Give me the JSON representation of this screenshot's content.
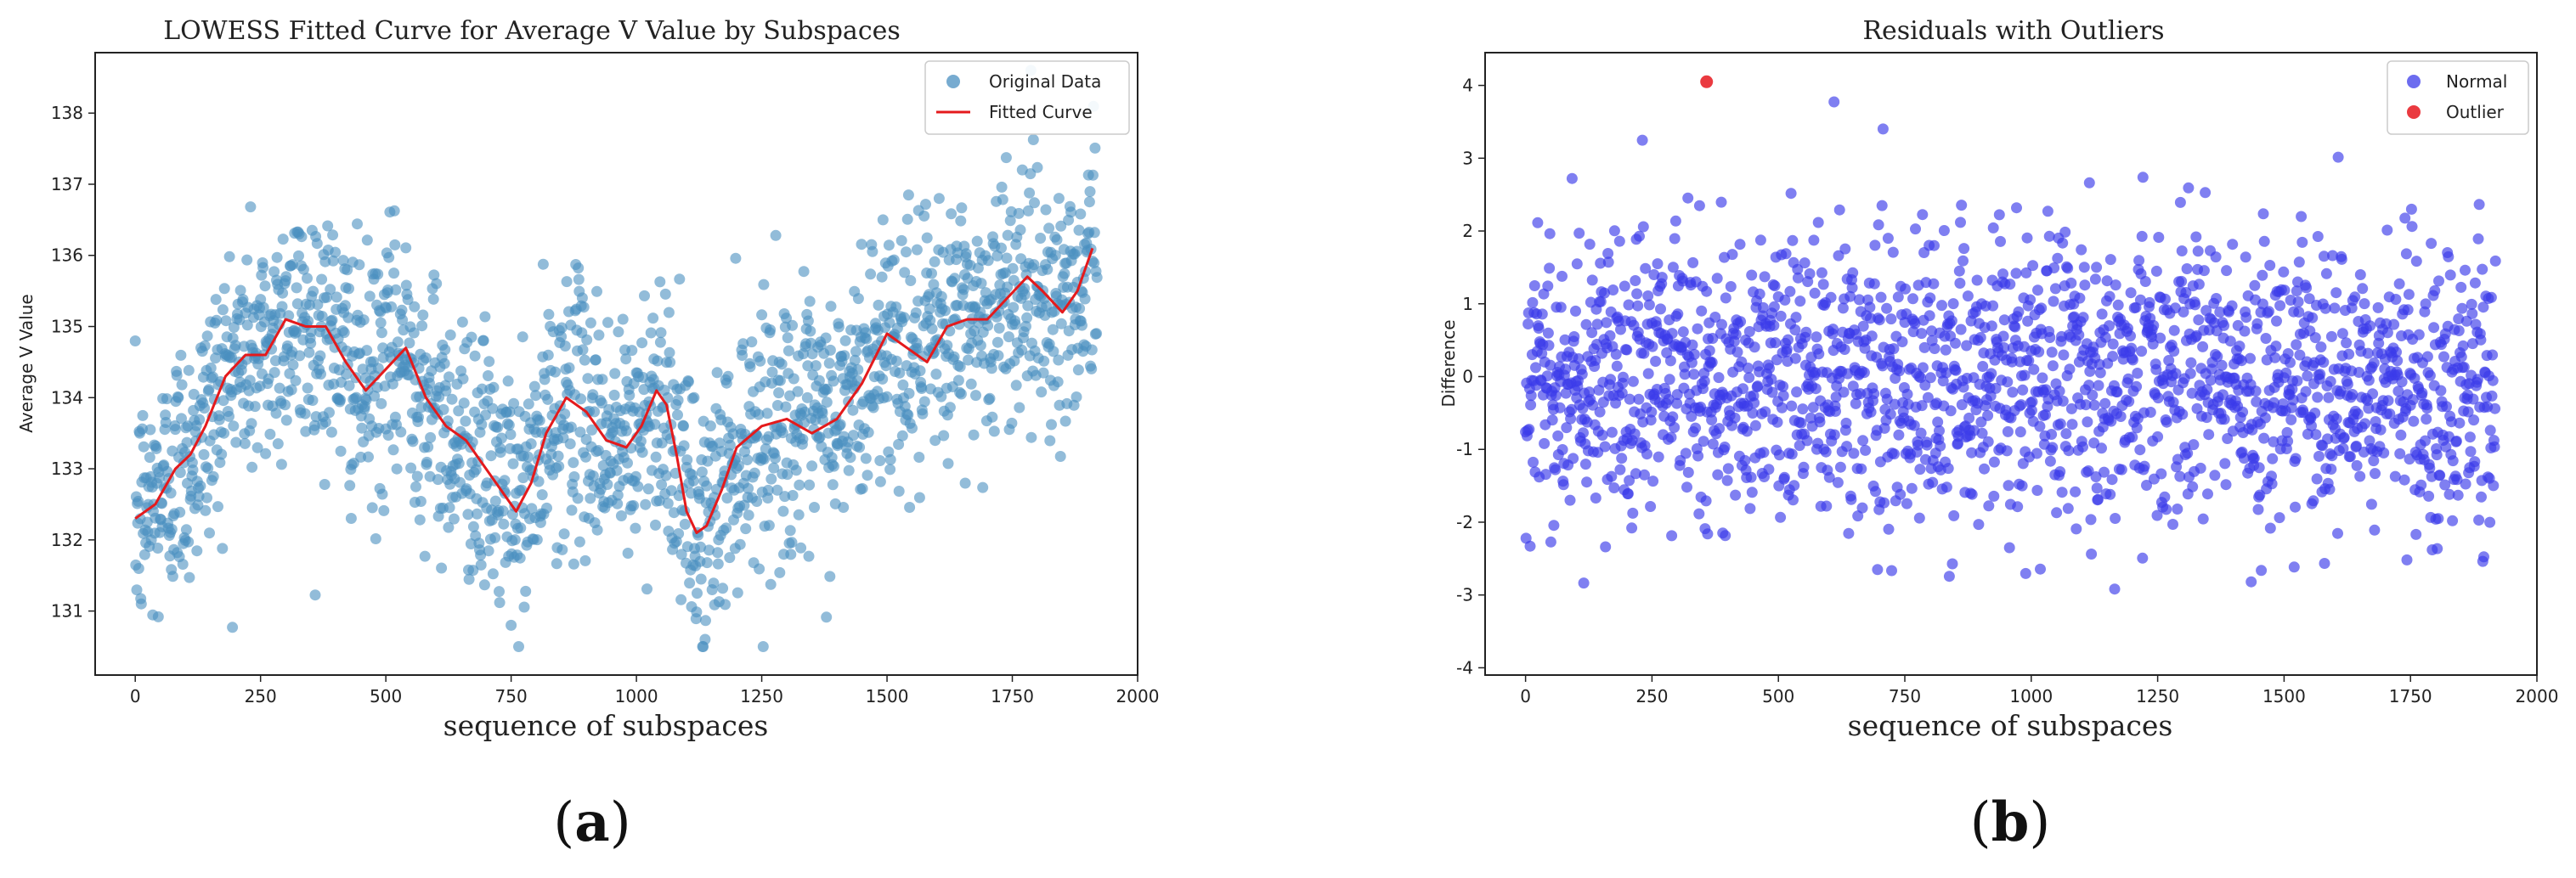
{
  "figure": {
    "captions": [
      {
        "open": "(",
        "letter": "a",
        "close": ")"
      },
      {
        "open": "(",
        "letter": "b",
        "close": ")"
      }
    ]
  },
  "chart_data": [
    {
      "type": "scatter",
      "title": "LOWESS Fitted Curve for Average V Value by Subspaces",
      "xlabel": "sequence of subspaces",
      "ylabel": "Average V Value",
      "xlim": [
        -80,
        2000
      ],
      "ylim": [
        130.1,
        138.85
      ],
      "xticks": [
        0,
        250,
        500,
        750,
        1000,
        1250,
        1500,
        1750,
        2000
      ],
      "yticks": [
        131,
        132,
        133,
        134,
        135,
        136,
        137,
        138
      ],
      "grid": false,
      "legend_position": "top-right",
      "legend": [
        {
          "label": "Original Data",
          "kind": "marker",
          "color": "#4a8fc0"
        },
        {
          "label": "Fitted Curve",
          "kind": "line",
          "color": "#e41a1c"
        }
      ],
      "series": [
        {
          "name": "Original Data",
          "mode": "points",
          "color": "#4a8fc0",
          "n_points": 1920,
          "x_range": [
            0,
            1919
          ],
          "y_range": [
            130.5,
            138.6
          ],
          "scatter_sd": 0.9
        },
        {
          "name": "Fitted Curve",
          "mode": "line",
          "color": "#e41a1c",
          "x": [
            0,
            40,
            80,
            110,
            140,
            180,
            220,
            260,
            300,
            340,
            380,
            420,
            460,
            500,
            540,
            580,
            620,
            660,
            700,
            740,
            760,
            790,
            820,
            860,
            900,
            940,
            980,
            1010,
            1040,
            1060,
            1080,
            1100,
            1120,
            1140,
            1170,
            1200,
            1250,
            1300,
            1350,
            1400,
            1450,
            1500,
            1540,
            1580,
            1620,
            1660,
            1700,
            1740,
            1780,
            1810,
            1850,
            1880,
            1910
          ],
          "y": [
            132.3,
            132.5,
            133.0,
            133.2,
            133.6,
            134.3,
            134.6,
            134.6,
            135.1,
            135.0,
            135.0,
            134.5,
            134.1,
            134.4,
            134.7,
            134.0,
            133.6,
            133.4,
            133.0,
            132.6,
            132.4,
            132.8,
            133.5,
            134.0,
            133.8,
            133.4,
            133.3,
            133.6,
            134.1,
            133.9,
            133.2,
            132.4,
            132.1,
            132.2,
            132.7,
            133.3,
            133.6,
            133.7,
            133.5,
            133.7,
            134.2,
            134.9,
            134.7,
            134.5,
            135.0,
            135.1,
            135.1,
            135.4,
            135.7,
            135.5,
            135.2,
            135.5,
            136.1
          ]
        }
      ]
    },
    {
      "type": "scatter",
      "title": "Residuals with Outliers",
      "xlabel": "sequence of subspaces",
      "ylabel": "Difference",
      "xlim": [
        -80,
        2000
      ],
      "ylim": [
        -4.1,
        4.45
      ],
      "xticks": [
        0,
        250,
        500,
        750,
        1000,
        1250,
        1500,
        1750,
        2000
      ],
      "yticks": [
        -4,
        -3,
        -2,
        -1,
        0,
        1,
        2,
        3,
        4
      ],
      "grid": false,
      "legend_position": "top-right",
      "legend": [
        {
          "label": "Normal",
          "kind": "marker",
          "color": "#3b3bea"
        },
        {
          "label": "Outlier",
          "kind": "marker",
          "color": "#e8252b"
        }
      ],
      "series": [
        {
          "name": "Normal",
          "mode": "points",
          "color": "#3b3bea",
          "n_points": 1919,
          "x_range": [
            0,
            1919
          ],
          "y_range": [
            -3.7,
            3.9
          ],
          "scatter_sd": 1.0
        },
        {
          "name": "Outlier",
          "mode": "points",
          "color": "#e8252b",
          "x": [
            358
          ],
          "y": [
            4.05
          ]
        }
      ]
    }
  ]
}
